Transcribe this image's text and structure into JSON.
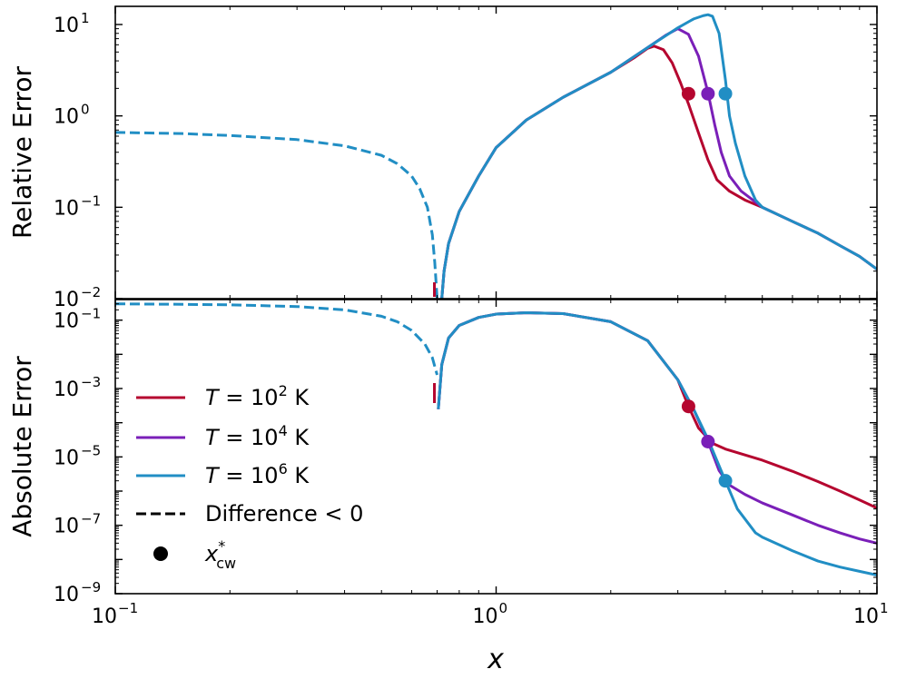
{
  "chart_data": {
    "type": "line",
    "x_axis": {
      "label": "x",
      "scale": "log",
      "range": [
        0.1,
        10
      ],
      "ticks": [
        {
          "value": 0.1,
          "base": "10",
          "exp": "−1"
        },
        {
          "value": 1,
          "base": "10",
          "exp": "0"
        },
        {
          "value": 10,
          "base": "10",
          "exp": "1"
        }
      ]
    },
    "colors": {
      "T1e2": "#b5062f",
      "T1e4": "#7a1fb8",
      "T1e6": "#218ec4"
    },
    "panels": [
      {
        "id": "relative",
        "ylabel": "Relative Error",
        "yscale": "log",
        "ylim": [
          0.01,
          15.8
        ],
        "yticks": [
          {
            "value": 0.01,
            "base": "10",
            "exp": "−2"
          },
          {
            "value": 0.1,
            "base": "10",
            "exp": "−1"
          },
          {
            "value": 1,
            "base": "10",
            "exp": "0"
          },
          {
            "value": 10,
            "base": "10",
            "exp": "1"
          }
        ],
        "series": [
          {
            "name": "Difference < 0 (all T)",
            "color_key": "T1e6",
            "style": "dashed",
            "points": [
              [
                0.1,
                0.66
              ],
              [
                0.15,
                0.64
              ],
              [
                0.2,
                0.61
              ],
              [
                0.3,
                0.55
              ],
              [
                0.4,
                0.47
              ],
              [
                0.5,
                0.37
              ],
              [
                0.55,
                0.3
              ],
              [
                0.6,
                0.22
              ],
              [
                0.63,
                0.16
              ],
              [
                0.66,
                0.1
              ],
              [
                0.68,
                0.05
              ],
              [
                0.69,
                0.025
              ],
              [
                0.7,
                0.01
              ]
            ]
          },
          {
            "name": "T = 10^2 K",
            "color_key": "T1e2",
            "style": "solid",
            "points": [
              [
                0.72,
                0.01
              ],
              [
                0.73,
                0.02
              ],
              [
                0.75,
                0.04
              ],
              [
                0.8,
                0.09
              ],
              [
                0.9,
                0.22
              ],
              [
                1.0,
                0.45
              ],
              [
                1.2,
                0.9
              ],
              [
                1.5,
                1.6
              ],
              [
                2.0,
                3.0
              ],
              [
                2.3,
                4.3
              ],
              [
                2.5,
                5.5
              ],
              [
                2.6,
                5.8
              ],
              [
                2.75,
                5.3
              ],
              [
                2.9,
                3.8
              ],
              [
                3.05,
                2.3
              ],
              [
                3.2,
                1.35
              ],
              [
                3.4,
                0.65
              ],
              [
                3.6,
                0.33
              ],
              [
                3.8,
                0.2
              ],
              [
                4.1,
                0.15
              ],
              [
                4.5,
                0.12
              ],
              [
                5,
                0.1
              ],
              [
                6,
                0.07
              ],
              [
                7,
                0.052
              ],
              [
                8,
                0.038
              ],
              [
                9,
                0.029
              ],
              [
                10,
                0.021
              ]
            ]
          },
          {
            "name": "T = 10^4 K",
            "color_key": "T1e4",
            "style": "solid",
            "points": [
              [
                0.72,
                0.01
              ],
              [
                0.73,
                0.02
              ],
              [
                0.75,
                0.04
              ],
              [
                0.8,
                0.09
              ],
              [
                0.9,
                0.22
              ],
              [
                1.0,
                0.45
              ],
              [
                1.2,
                0.9
              ],
              [
                1.5,
                1.6
              ],
              [
                2.0,
                3.0
              ],
              [
                2.5,
                5.6
              ],
              [
                2.8,
                7.7
              ],
              [
                3.0,
                9.0
              ],
              [
                3.2,
                7.8
              ],
              [
                3.4,
                4.5
              ],
              [
                3.6,
                1.8
              ],
              [
                3.75,
                0.8
              ],
              [
                3.9,
                0.4
              ],
              [
                4.1,
                0.22
              ],
              [
                4.4,
                0.15
              ],
              [
                5,
                0.1
              ],
              [
                6,
                0.07
              ],
              [
                7,
                0.052
              ],
              [
                8,
                0.038
              ],
              [
                9,
                0.029
              ],
              [
                10,
                0.021
              ]
            ]
          },
          {
            "name": "T = 10^6 K",
            "color_key": "T1e6",
            "style": "solid",
            "points": [
              [
                0.72,
                0.01
              ],
              [
                0.73,
                0.02
              ],
              [
                0.75,
                0.04
              ],
              [
                0.8,
                0.09
              ],
              [
                0.9,
                0.22
              ],
              [
                1.0,
                0.45
              ],
              [
                1.2,
                0.9
              ],
              [
                1.5,
                1.6
              ],
              [
                2.0,
                3.0
              ],
              [
                2.5,
                5.6
              ],
              [
                3.0,
                9.2
              ],
              [
                3.3,
                11.5
              ],
              [
                3.5,
                12.5
              ],
              [
                3.6,
                12.8
              ],
              [
                3.7,
                12.3
              ],
              [
                3.85,
                8.0
              ],
              [
                4.0,
                2.5
              ],
              [
                4.1,
                1.0
              ],
              [
                4.25,
                0.5
              ],
              [
                4.5,
                0.22
              ],
              [
                4.8,
                0.12
              ],
              [
                5,
                0.1
              ],
              [
                6,
                0.07
              ],
              [
                7,
                0.052
              ],
              [
                8,
                0.038
              ],
              [
                9,
                0.029
              ],
              [
                10,
                0.021
              ]
            ]
          }
        ],
        "markers": [
          {
            "series": "T = 10^2 K",
            "color_key": "T1e2",
            "x": 3.2,
            "y": 1.75
          },
          {
            "series": "T = 10^4 K",
            "color_key": "T1e4",
            "x": 3.6,
            "y": 1.75
          },
          {
            "series": "T = 10^6 K",
            "color_key": "T1e6",
            "x": 4.0,
            "y": 1.75
          }
        ]
      },
      {
        "id": "absolute",
        "ylabel": "Absolute Error",
        "yscale": "log",
        "ylim": [
          1e-09,
          0.4
        ],
        "yticks": [
          {
            "value": 1e-09,
            "base": "10",
            "exp": "−9"
          },
          {
            "value": 1e-07,
            "base": "10",
            "exp": "−7"
          },
          {
            "value": 1e-05,
            "base": "10",
            "exp": "−5"
          },
          {
            "value": 0.001,
            "base": "10",
            "exp": "−3"
          },
          {
            "value": 0.1,
            "base": "10",
            "exp": "−1"
          }
        ],
        "series": [
          {
            "name": "Difference < 0 (all T)",
            "color_key": "T1e6",
            "style": "dashed",
            "points": [
              [
                0.1,
                0.3
              ],
              [
                0.15,
                0.29
              ],
              [
                0.2,
                0.28
              ],
              [
                0.3,
                0.25
              ],
              [
                0.4,
                0.2
              ],
              [
                0.5,
                0.13
              ],
              [
                0.55,
                0.09
              ],
              [
                0.6,
                0.05
              ],
              [
                0.65,
                0.02
              ],
              [
                0.68,
                0.008
              ],
              [
                0.7,
                0.0025
              ]
            ]
          },
          {
            "name": "T = 10^2 K",
            "color_key": "T1e2",
            "style": "solid",
            "points": [
              [
                0.705,
                0.00025
              ],
              [
                0.72,
                0.005
              ],
              [
                0.75,
                0.03
              ],
              [
                0.8,
                0.07
              ],
              [
                0.9,
                0.12
              ],
              [
                1.0,
                0.15
              ],
              [
                1.2,
                0.165
              ],
              [
                1.5,
                0.155
              ],
              [
                2.0,
                0.09
              ],
              [
                2.5,
                0.025
              ],
              [
                3.0,
                0.0018
              ],
              [
                3.2,
                0.0003
              ],
              [
                3.4,
                7e-05
              ],
              [
                3.7,
                2.5e-05
              ],
              [
                4.0,
                1.7e-05
              ],
              [
                5,
                8e-06
              ],
              [
                6,
                3.8e-06
              ],
              [
                7,
                1.9e-06
              ],
              [
                8,
                1e-06
              ],
              [
                9,
                5.5e-07
              ],
              [
                10,
                3.2e-07
              ]
            ]
          },
          {
            "name": "T = 10^4 K",
            "color_key": "T1e4",
            "style": "solid",
            "points": [
              [
                0.705,
                0.00025
              ],
              [
                0.72,
                0.005
              ],
              [
                0.75,
                0.03
              ],
              [
                0.8,
                0.07
              ],
              [
                0.9,
                0.12
              ],
              [
                1.0,
                0.15
              ],
              [
                1.2,
                0.165
              ],
              [
                1.5,
                0.155
              ],
              [
                2.0,
                0.09
              ],
              [
                2.5,
                0.025
              ],
              [
                3.0,
                0.0018
              ],
              [
                3.3,
                0.00025
              ],
              [
                3.6,
                2.8e-05
              ],
              [
                3.85,
                4e-06
              ],
              [
                4.1,
                1.5e-06
              ],
              [
                4.5,
                8e-07
              ],
              [
                5,
                4.5e-07
              ],
              [
                6,
                2e-07
              ],
              [
                7,
                1e-07
              ],
              [
                8,
                6e-08
              ],
              [
                9,
                4e-08
              ],
              [
                10,
                3e-08
              ]
            ]
          },
          {
            "name": "T = 10^6 K",
            "color_key": "T1e6",
            "style": "solid",
            "points": [
              [
                0.705,
                0.00025
              ],
              [
                0.72,
                0.005
              ],
              [
                0.75,
                0.03
              ],
              [
                0.8,
                0.07
              ],
              [
                0.9,
                0.12
              ],
              [
                1.0,
                0.15
              ],
              [
                1.2,
                0.165
              ],
              [
                1.5,
                0.155
              ],
              [
                2.0,
                0.09
              ],
              [
                2.5,
                0.025
              ],
              [
                3.0,
                0.0018
              ],
              [
                3.3,
                0.00025
              ],
              [
                3.6,
                3.3e-05
              ],
              [
                4.0,
                2e-06
              ],
              [
                4.3,
                3e-07
              ],
              [
                4.8,
                6e-08
              ],
              [
                5,
                4.5e-08
              ],
              [
                6,
                1.8e-08
              ],
              [
                7,
                9e-09
              ],
              [
                8,
                6e-09
              ],
              [
                9,
                4.5e-09
              ],
              [
                10,
                3.5e-09
              ]
            ]
          }
        ],
        "markers": [
          {
            "series": "T = 10^2 K",
            "color_key": "T1e2",
            "x": 3.2,
            "y": 0.0003
          },
          {
            "series": "T = 10^4 K",
            "color_key": "T1e4",
            "x": 3.6,
            "y": 2.8e-05
          },
          {
            "series": "T = 10^6 K",
            "color_key": "T1e6",
            "x": 4.0,
            "y": 2e-06
          }
        ]
      }
    ],
    "legend": {
      "placement": "lower-left of bottom panel",
      "entries": [
        {
          "kind": "line",
          "color_key": "T1e2",
          "var": "T",
          "eq": " = 10",
          "exp": "2",
          "unit": " K"
        },
        {
          "kind": "line",
          "color_key": "T1e4",
          "var": "T",
          "eq": " = 10",
          "exp": "4",
          "unit": " K"
        },
        {
          "kind": "line",
          "color_key": "T1e6",
          "var": "T",
          "eq": " = 10",
          "exp": "6",
          "unit": " K"
        },
        {
          "kind": "dashed",
          "color_key": "black",
          "label": "Difference < 0"
        },
        {
          "kind": "marker",
          "color_key": "black",
          "var": "x",
          "sup": "*",
          "sub": "cw"
        }
      ]
    }
  }
}
